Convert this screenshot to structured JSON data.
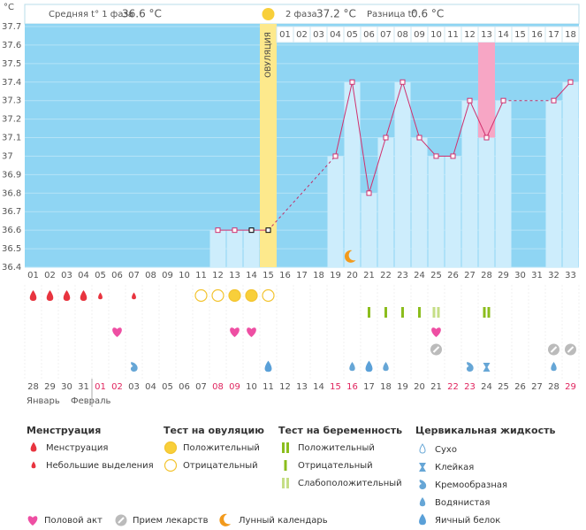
{
  "header": {
    "unit": "°C",
    "phase1_label": "Средняя t° 1 фаза",
    "phase1_value": "36.6 °C",
    "ovulation": "ОВУЛЯЦИЯ",
    "phase2_label": "2 фаза",
    "phase2_value": "37.2 °C",
    "diff_label": "Разница t°",
    "diff_value": "0.6 °C"
  },
  "chart": {
    "ylim": [
      36.4,
      37.7
    ],
    "yticks": [
      37.7,
      37.6,
      37.5,
      37.4,
      37.3,
      37.2,
      37.1,
      37,
      36.9,
      36.8,
      36.7,
      36.6,
      36.5,
      36.4
    ],
    "cycle_days": [
      "01",
      "02",
      "03",
      "04",
      "05",
      "06",
      "07",
      "08",
      "09",
      "10",
      "11",
      "12",
      "13",
      "14",
      "15",
      "16",
      "17",
      "18",
      "19",
      "20",
      "21",
      "22",
      "23",
      "24",
      "25",
      "26",
      "27",
      "28",
      "29",
      "30",
      "31",
      "32",
      "33"
    ],
    "phase2_days": [
      "01",
      "02",
      "03",
      "04",
      "05",
      "06",
      "07",
      "08",
      "09",
      "10",
      "11",
      "12",
      "13",
      "14",
      "15",
      "16",
      "17",
      "18"
    ],
    "temperatures": [
      null,
      null,
      null,
      null,
      null,
      null,
      null,
      null,
      null,
      null,
      null,
      36.6,
      36.6,
      36.6,
      36.6,
      null,
      null,
      null,
      37.0,
      37.4,
      36.8,
      37.1,
      37.4,
      37.1,
      37.0,
      37.0,
      37.3,
      37.1,
      37.3,
      null,
      null,
      37.3,
      37.4
    ],
    "dates": [
      "28",
      "29",
      "30",
      "31",
      "01",
      "02",
      "03",
      "04",
      "05",
      "06",
      "07",
      "08",
      "09",
      "10",
      "11",
      "12",
      "13",
      "14",
      "15",
      "16",
      "17",
      "18",
      "19",
      "20",
      "21",
      "22",
      "23",
      "24",
      "25",
      "26",
      "27",
      "28",
      "29"
    ],
    "months": [
      "Январь",
      "Февраль"
    ]
  },
  "legend": {
    "menstruation": {
      "title": "Менструация",
      "items": [
        "Менструация",
        "Небольшие выделения"
      ]
    },
    "ovulation_test": {
      "title": "Тест на овуляцию",
      "items": [
        "Положительный",
        "Отрицательный"
      ]
    },
    "pregnancy_test": {
      "title": "Тест на беременность",
      "items": [
        "Положительный",
        "Отрицательный",
        "Слабоположительный"
      ]
    },
    "cervical": {
      "title": "Цервикальная жидкость",
      "items": [
        "Сухо",
        "Клейкая",
        "Кремообразная",
        "Водянистая",
        "Яичный белок"
      ]
    },
    "other": [
      "Половой акт",
      "Прием лекарств",
      "Лунный календарь"
    ]
  }
}
